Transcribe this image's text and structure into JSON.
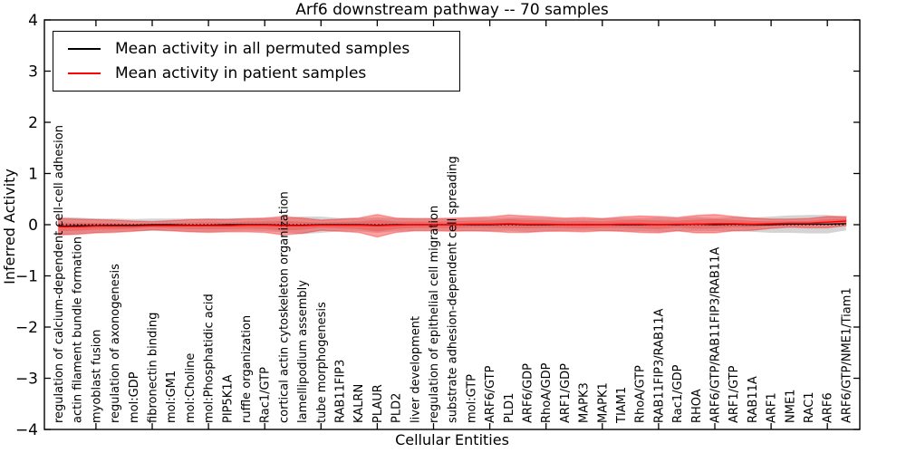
{
  "title": "Arf6 downstream pathway -- 70 samples",
  "axes": {
    "ylabel": "Inferred Activity",
    "xlabel": "Cellular Entities"
  },
  "legend": {
    "items": [
      {
        "label": "Mean activity in all permuted samples",
        "color": "#000000"
      },
      {
        "label": "Mean activity in patient samples",
        "color": "#ff0000"
      }
    ]
  },
  "chart_data": {
    "type": "line",
    "title": "Arf6 downstream pathway -- 70 samples",
    "xlabel": "Cellular Entities",
    "ylabel": "Inferred Activity",
    "ylim": [
      -4,
      4
    ],
    "yticks": [
      -4,
      -3,
      -2,
      -1,
      0,
      1,
      2,
      3,
      4
    ],
    "x_tick_step": 3,
    "grid": false,
    "legend_position": "upper left",
    "background_color": "#ffffff",
    "frame_color": "#000000",
    "zero_reference_line": {
      "y": 0,
      "style": "dotted",
      "color": "#000000"
    },
    "categories": [
      "regulation of calcium-dependent cell-cell adhesion",
      "actin filament bundle formation",
      "myoblast fusion",
      "regulation of axonogenesis",
      "mol:GDP",
      "fibronectin binding",
      "mol:GM1",
      "mol:Choline",
      "mol:Phosphatidic acid",
      "PIP5K1A",
      "ruffle organization",
      "Rac1/GTP",
      "cortical actin cytoskeleton organization",
      "lamellipodium assembly",
      "tube morphogenesis",
      "RAB11FIP3",
      "KALRN",
      "PLAUR",
      "PLD2",
      "liver development",
      "regulation of epithelial cell migration",
      "substrate adhesion-dependent cell spreading",
      "mol:GTP",
      "ARF6/GTP",
      "PLD1",
      "ARF6/GDP",
      "RhoA/GDP",
      "ARF1/GDP",
      "MAPK3",
      "MAPK1",
      "TIAM1",
      "RhoA/GTP",
      "RAB11FIP3/RAB11A",
      "Rac1/GDP",
      "RHOA",
      "ARF6/GTP/RAB11FIP3/RAB11A",
      "ARF1/GTP",
      "RAB11A",
      "ARF1",
      "NME1",
      "RAC1",
      "ARF6",
      "ARF6/GTP/NME1/Tiam1"
    ],
    "series": [
      {
        "name": "Mean activity in all permuted samples",
        "line_color": "#000000",
        "band_color": "#787878",
        "band_alpha": 0.32,
        "mean": [
          -0.03,
          -0.02,
          -0.02,
          -0.01,
          -0.01,
          0,
          0,
          -0.01,
          -0.01,
          0,
          0,
          0,
          -0.01,
          -0.01,
          0,
          0,
          0,
          -0.01,
          0,
          0,
          0,
          0,
          0,
          0,
          0.01,
          0,
          0,
          0,
          0,
          0,
          0,
          0,
          0,
          0,
          0.01,
          0,
          0.01,
          0,
          0,
          0.01,
          0.01,
          0.01,
          0.02
        ],
        "band_halfwidth": [
          0.18,
          0.16,
          0.14,
          0.13,
          0.12,
          0.12,
          0.12,
          0.13,
          0.13,
          0.13,
          0.12,
          0.13,
          0.14,
          0.17,
          0.16,
          0.13,
          0.13,
          0.15,
          0.13,
          0.12,
          0.12,
          0.12,
          0.13,
          0.13,
          0.13,
          0.14,
          0.13,
          0.12,
          0.12,
          0.12,
          0.13,
          0.13,
          0.14,
          0.13,
          0.14,
          0.13,
          0.14,
          0.14,
          0.16,
          0.17,
          0.18,
          0.18,
          0.13
        ]
      },
      {
        "name": "Mean activity in patient samples",
        "line_color": "#ff0000",
        "band_color": "#ff1e1e",
        "band_alpha": 0.42,
        "mean": [
          -0.04,
          -0.04,
          -0.03,
          -0.03,
          -0.03,
          -0.02,
          -0.02,
          -0.02,
          -0.02,
          -0.02,
          -0.01,
          -0.01,
          -0.02,
          -0.02,
          -0.01,
          -0.01,
          -0.01,
          -0.02,
          -0.01,
          0,
          0,
          0,
          0.01,
          0.01,
          0.02,
          0.01,
          0.01,
          0,
          0,
          0,
          0.01,
          0.01,
          0,
          0.01,
          0.01,
          0.02,
          0.02,
          0.01,
          0.02,
          0.03,
          0.03,
          0.05,
          0.07
        ],
        "band_halfwidth": [
          0.16,
          0.15,
          0.13,
          0.12,
          0.1,
          0.08,
          0.1,
          0.12,
          0.13,
          0.12,
          0.13,
          0.14,
          0.18,
          0.15,
          0.1,
          0.12,
          0.14,
          0.22,
          0.14,
          0.12,
          0.12,
          0.13,
          0.13,
          0.14,
          0.17,
          0.16,
          0.14,
          0.13,
          0.14,
          0.12,
          0.14,
          0.16,
          0.16,
          0.13,
          0.17,
          0.18,
          0.14,
          0.12,
          0.09,
          0.08,
          0.09,
          0.11,
          0.09
        ]
      }
    ]
  }
}
